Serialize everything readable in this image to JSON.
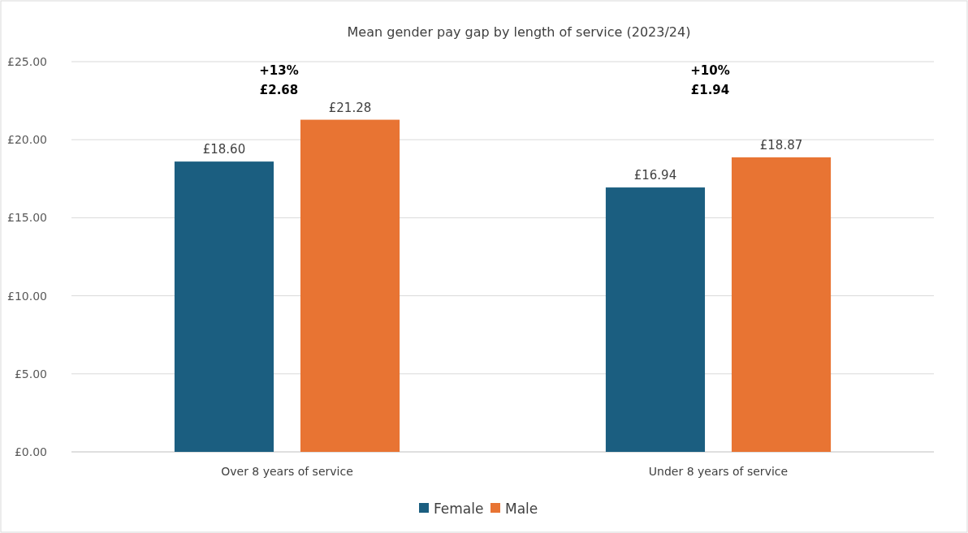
{
  "chart_data": {
    "type": "bar",
    "title": "Mean gender pay gap by length of service (2023/24)",
    "categories": [
      "Over 8 years of service",
      "Under 8 years of service"
    ],
    "series": [
      {
        "name": "Female",
        "color": "#1b5e80",
        "values": [
          18.6,
          16.94
        ],
        "value_labels": [
          "£18.60",
          "£16.94"
        ]
      },
      {
        "name": "Male",
        "color": "#e87433",
        "values": [
          21.28,
          18.87
        ],
        "value_labels": [
          "£21.28",
          "£18.87"
        ]
      }
    ],
    "ylim": [
      0,
      25
    ],
    "yticks": [
      {
        "value": 0,
        "label": "£0.00"
      },
      {
        "value": 5,
        "label": "£5.00"
      },
      {
        "value": 10,
        "label": "£10.00"
      },
      {
        "value": 15,
        "label": "£15.00"
      },
      {
        "value": 20,
        "label": "£20.00"
      },
      {
        "value": 25,
        "label": "£25.00"
      }
    ],
    "grid": "y",
    "legend": "bottom",
    "annotations": [
      "+13%\n£2.68",
      "+10%\n£1.94"
    ]
  }
}
